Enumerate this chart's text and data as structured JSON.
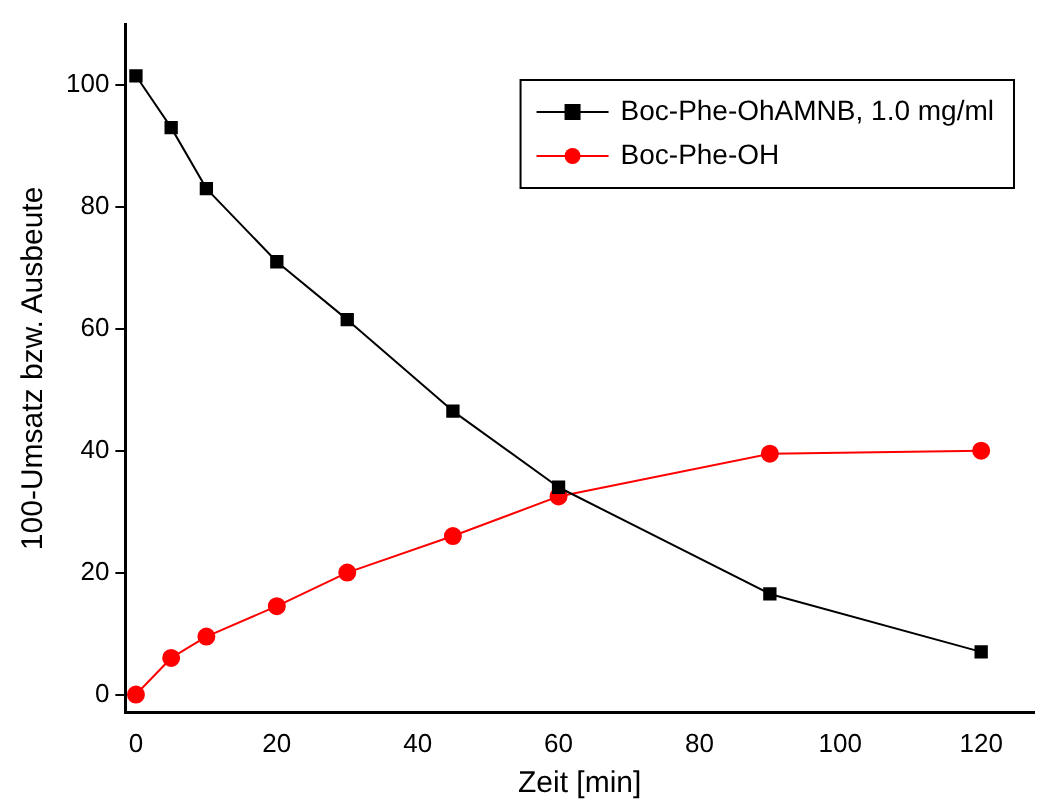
{
  "chart_data": {
    "type": "line",
    "xlabel": "Zeit [min]",
    "ylabel": "100-Umsatz bzw. Ausbeute",
    "x": [
      0,
      5,
      10,
      20,
      30,
      45,
      60,
      90,
      120
    ],
    "xlim": [
      -1.5,
      127.5
    ],
    "xticks": [
      0,
      20,
      40,
      60,
      80,
      100,
      120
    ],
    "ylim": [
      -3,
      110
    ],
    "yticks": [
      0,
      20,
      40,
      60,
      80,
      100
    ],
    "grid": false,
    "legend": "top right",
    "series": [
      {
        "name": "Boc-Phe-OhAMNB, 1.0 mg/ml",
        "color": "#000000",
        "marker": "square",
        "values": [
          101.5,
          93,
          83,
          71,
          61.5,
          46.5,
          34,
          16.5,
          7
        ]
      },
      {
        "name": "Boc-Phe-OH",
        "color": "#ff0000",
        "marker": "circle",
        "values": [
          0,
          6,
          9.5,
          14.5,
          20,
          26,
          32.5,
          39.5,
          40
        ]
      }
    ]
  }
}
